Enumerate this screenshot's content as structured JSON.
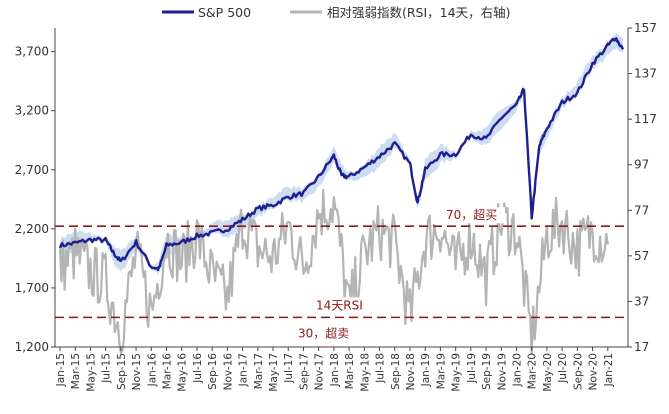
{
  "chart_data": {
    "type": "line",
    "title": "",
    "legend": [
      {
        "name": "S&P 500",
        "color": "#1f1f8f"
      },
      {
        "name": "相对强弱指数(RSI，14天，右轴)",
        "color": "#b4b4b4"
      }
    ],
    "legend_position": "top",
    "band_color": "#c6d9f0",
    "x_tick_labels": [
      "Jan-15",
      "Mar-15",
      "May-15",
      "Jul-15",
      "Sep-15",
      "Nov-15",
      "Jan-16",
      "Mar-16",
      "May-16",
      "Jul-16",
      "Sep-16",
      "Nov-16",
      "Jan-17",
      "Mar-17",
      "May-17",
      "Jul-17",
      "Sep-17",
      "Nov-17",
      "Jan-18",
      "Mar-18",
      "May-18",
      "Jul-18",
      "Sep-18",
      "Nov-18",
      "Jan-19",
      "Mar-19",
      "May-19",
      "Jul-19",
      "Sep-19",
      "Nov-19",
      "Jan-20",
      "Mar-20",
      "May-20",
      "Jul-20",
      "Sep-20",
      "Nov-20",
      "Jan-21"
    ],
    "y_left": {
      "min": 1200,
      "max": 3900,
      "ticks": [
        1200,
        1700,
        2200,
        2700,
        3200,
        3700
      ],
      "tick_labels": [
        "1,200",
        "1,700",
        "2,200",
        "2,700",
        "3,200",
        "3,700"
      ]
    },
    "y_right": {
      "min": 17,
      "max": 157,
      "ticks": [
        17,
        37,
        57,
        77,
        97,
        117,
        137,
        157
      ],
      "tick_labels": [
        "17",
        "37",
        "57",
        "77",
        "97",
        "117",
        "137",
        "157"
      ]
    },
    "reference_lines": [
      {
        "value": 70,
        "axis": "right",
        "label": "70，超买",
        "color": "#8b1a1a",
        "style": "dashed"
      },
      {
        "value": 30,
        "axis": "right",
        "label": "30，超卖",
        "color": "#8b1a1a",
        "style": "dashed"
      }
    ],
    "annotation_text": "14天RSI",
    "grid": false,
    "series": [
      {
        "name": "S&P 500",
        "axis": "left",
        "color": "#1f1f8f",
        "x": [
          "Jan-15",
          "Mar-15",
          "May-15",
          "Jul-15",
          "Aug-15",
          "Sep-15",
          "Nov-15",
          "Jan-16",
          "Feb-16",
          "Mar-16",
          "May-16",
          "Jul-16",
          "Sep-16",
          "Nov-16",
          "Jan-17",
          "Mar-17",
          "May-17",
          "Jul-17",
          "Sep-17",
          "Nov-17",
          "Jan-18",
          "Feb-18",
          "Mar-18",
          "May-18",
          "Jul-18",
          "Sep-18",
          "Nov-18",
          "Dec-18",
          "Jan-19",
          "Mar-19",
          "May-19",
          "Jul-19",
          "Sep-19",
          "Nov-19",
          "Jan-20",
          "Feb-20",
          "Mar-20",
          "Apr-20",
          "May-20",
          "Jul-20",
          "Sep-20",
          "Nov-20",
          "Jan-21",
          "Feb-21",
          "Mar-21"
        ],
        "y": [
          2058,
          2080,
          2108,
          2105,
          2000,
          1920,
          2088,
          1880,
          1860,
          2060,
          2085,
          2140,
          2165,
          2200,
          2278,
          2370,
          2400,
          2470,
          2500,
          2640,
          2820,
          2650,
          2640,
          2720,
          2815,
          2920,
          2750,
          2420,
          2700,
          2830,
          2830,
          3000,
          2960,
          3140,
          3250,
          3380,
          2300,
          2900,
          3050,
          3270,
          3350,
          3600,
          3750,
          3820,
          3720
        ]
      },
      {
        "name": "相对强弱指数(RSI，14天，右轴)",
        "axis": "right",
        "color": "#b4b4b4",
        "x": [
          "Jan-15",
          "Mar-15",
          "May-15",
          "Jul-15",
          "Sep-15",
          "Nov-15",
          "Jan-16",
          "Mar-16",
          "May-16",
          "Jul-16",
          "Sep-16",
          "Nov-16",
          "Jan-17",
          "Mar-17",
          "May-17",
          "Jul-17",
          "Sep-17",
          "Nov-17",
          "Jan-18",
          "Mar-18",
          "May-18",
          "Jul-18",
          "Sep-18",
          "Nov-18",
          "Jan-19",
          "Mar-19",
          "May-19",
          "Jul-19",
          "Sep-19",
          "Nov-19",
          "Jan-20",
          "Mar-20",
          "May-20",
          "Jul-20",
          "Sep-20",
          "Nov-20",
          "Jan-21"
        ],
        "y": [
          52,
          58,
          50,
          46,
          24,
          58,
          32,
          64,
          55,
          66,
          48,
          38,
          72,
          60,
          56,
          70,
          52,
          76,
          80,
          34,
          58,
          68,
          62,
          30,
          64,
          70,
          52,
          66,
          48,
          72,
          68,
          20,
          66,
          72,
          60,
          68,
          62
        ]
      }
    ]
  }
}
